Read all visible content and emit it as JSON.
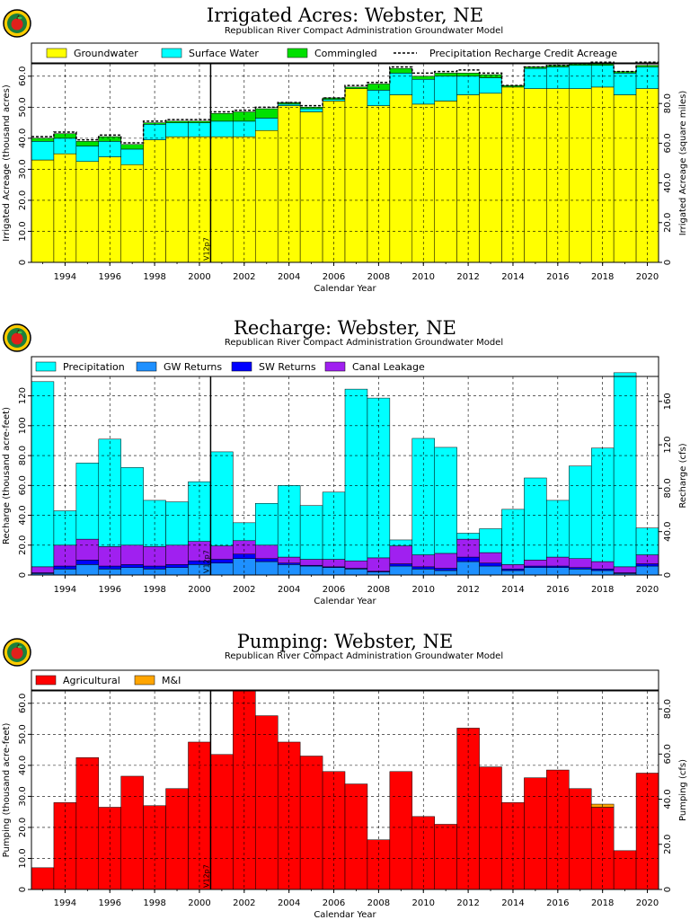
{
  "chart_data": [
    {
      "type": "bar",
      "stacked": true,
      "title": "Irrigated Acres: Webster, NE",
      "subtitle": "Republican River Compact Administration Groundwater Model",
      "xlabel": "Calendar Year",
      "ylabel": "Irrigated Acreage (thousand acres)",
      "ylabel_right": "Irrigated Acreage (square miles)",
      "ylim": [
        0,
        64
      ],
      "yticks": [
        "0",
        "10.0",
        "20.0",
        "30.0",
        "40.0",
        "50.0",
        "60.0"
      ],
      "ylim_right": [
        0,
        100
      ],
      "yticks_right": [
        "0",
        "20.0",
        "40.0",
        "60.0",
        "80.0"
      ],
      "xlim": [
        1992.5,
        2020.5
      ],
      "xtick_labels": [
        "1994",
        "1996",
        "1998",
        "2000",
        "2002",
        "2004",
        "2006",
        "2008",
        "2010",
        "2012",
        "2014",
        "2016",
        "2018",
        "2020"
      ],
      "annotation": "V12p7",
      "annotation_x": 2000.5,
      "grid": true,
      "legend_position": "top",
      "categories": [
        1993,
        1994,
        1995,
        1996,
        1997,
        1998,
        1999,
        2000,
        2001,
        2002,
        2003,
        2004,
        2005,
        2006,
        2007,
        2008,
        2009,
        2010,
        2011,
        2012,
        2013,
        2014,
        2015,
        2016,
        2017,
        2018,
        2019,
        2020
      ],
      "series": [
        {
          "name": "Groundwater",
          "color": "#ffff00",
          "values": [
            33,
            35,
            32.5,
            34,
            31.5,
            39.5,
            40.5,
            40.5,
            40.5,
            40.5,
            42.5,
            50.5,
            48.5,
            52,
            56,
            50.5,
            54,
            51,
            52,
            54,
            54.5,
            56.5,
            56,
            56,
            56,
            56.5,
            54,
            56
          ]
        },
        {
          "name": "Surface Water",
          "color": "#00ffff",
          "values": [
            6,
            5,
            5,
            5,
            5,
            5,
            4.5,
            4.5,
            5,
            5,
            4,
            0.5,
            1,
            0.5,
            0,
            5,
            7,
            8,
            8,
            6,
            5,
            0,
            6.5,
            7,
            7.5,
            7,
            7,
            7
          ]
        },
        {
          "name": "Commingled",
          "color": "#00e000",
          "values": [
            1,
            1.5,
            1.5,
            1.5,
            1.5,
            0.5,
            0.5,
            0.5,
            2.5,
            3,
            3,
            0.5,
            0.5,
            0.5,
            0.5,
            2,
            1.5,
            1,
            1,
            1,
            1,
            0.5,
            0.5,
            0.5,
            0.5,
            0.5,
            0.5,
            0.5
          ]
        }
      ],
      "line_series": {
        "name": "Precipitation Recharge Credit Acreage",
        "style": "dashed",
        "values": [
          40.5,
          42,
          39.5,
          41,
          38.5,
          45.5,
          46,
          46,
          48.5,
          49,
          50,
          51.5,
          50.5,
          53,
          57,
          58,
          63,
          61,
          61.5,
          62,
          61,
          57,
          63,
          63.5,
          64,
          64.5,
          61.5,
          64.5
        ]
      }
    },
    {
      "type": "bar",
      "stacked": true,
      "title": "Recharge: Webster, NE",
      "subtitle": "Republican River Compact Administration Groundwater Model",
      "xlabel": "Calendar Year",
      "ylabel": "Recharge (thousand acre-feet)",
      "ylabel_right": "Recharge (cfs)",
      "ylim": [
        0,
        133
      ],
      "yticks": [
        "0",
        "20.0",
        "40.0",
        "60.0",
        "80.0",
        "100",
        "120"
      ],
      "ylim_right": [
        0,
        183
      ],
      "yticks_right": [
        "0",
        "40.0",
        "80.0",
        "120",
        "160"
      ],
      "xlim": [
        1992.5,
        2020.5
      ],
      "xtick_labels": [
        "1994",
        "1996",
        "1998",
        "2000",
        "2002",
        "2004",
        "2006",
        "2008",
        "2010",
        "2012",
        "2014",
        "2016",
        "2018",
        "2020"
      ],
      "annotation": "V12p7",
      "annotation_x": 2000.5,
      "grid": true,
      "legend_position": "top",
      "categories": [
        1993,
        1994,
        1995,
        1996,
        1997,
        1998,
        1999,
        2000,
        2001,
        2002,
        2003,
        2004,
        2005,
        2006,
        2007,
        2008,
        2009,
        2010,
        2011,
        2012,
        2013,
        2014,
        2015,
        2016,
        2017,
        2018,
        2019,
        2020
      ],
      "series": [
        {
          "name": "GW Returns",
          "color": "#1e90ff",
          "values": [
            1,
            4,
            7,
            4,
            5,
            4,
            5,
            7,
            8,
            11,
            9,
            7,
            6,
            5,
            4,
            2,
            6,
            4,
            3,
            9,
            6,
            3,
            5,
            5,
            4,
            3,
            1,
            6
          ]
        },
        {
          "name": "SW Returns",
          "color": "#0000ff",
          "values": [
            0.5,
            2,
            3,
            2,
            2,
            2,
            2,
            2.5,
            2.5,
            3,
            2,
            1,
            0.5,
            0.5,
            0.5,
            0.5,
            1.5,
            1.5,
            1.5,
            3,
            2,
            1,
            1,
            1,
            1,
            1,
            0.5,
            1.5
          ]
        },
        {
          "name": "Canal Leakage",
          "color": "#a020f0",
          "values": [
            4,
            14,
            14,
            13,
            13,
            13,
            13,
            13,
            9,
            9,
            9,
            4,
            4,
            5,
            5,
            9,
            12,
            8,
            10,
            12,
            7,
            3,
            4,
            6,
            6,
            5,
            4,
            6
          ]
        },
        {
          "name": "Precipitation",
          "color": "#00ffff",
          "values": [
            124,
            23,
            51,
            72,
            52,
            31,
            29,
            40,
            63,
            12,
            28,
            48,
            36,
            45,
            115,
            107,
            4,
            78,
            71,
            4,
            16,
            37,
            55,
            38,
            62,
            76,
            130,
            18
          ]
        }
      ]
    },
    {
      "type": "bar",
      "stacked": true,
      "title": "Pumping: Webster, NE",
      "subtitle": "Republican River Compact Administration Groundwater Model",
      "xlabel": "Calendar Year",
      "ylabel": "Pumping (thousand acre-feet)",
      "ylabel_right": "Pumping (cfs)",
      "ylim": [
        0,
        64
      ],
      "yticks": [
        "0",
        "10.0",
        "20.0",
        "30.0",
        "40.0",
        "50.0",
        "60.0"
      ],
      "ylim_right": [
        0,
        88
      ],
      "yticks_right": [
        "0",
        "20.0",
        "40.0",
        "60.0",
        "80.0"
      ],
      "xlim": [
        1992.5,
        2020.5
      ],
      "xtick_labels": [
        "1994",
        "1996",
        "1998",
        "2000",
        "2002",
        "2004",
        "2006",
        "2008",
        "2010",
        "2012",
        "2014",
        "2016",
        "2018",
        "2020"
      ],
      "annotation": "V12p7",
      "annotation_x": 2000.5,
      "grid": true,
      "legend_position": "top",
      "categories": [
        1993,
        1994,
        1995,
        1996,
        1997,
        1998,
        1999,
        2000,
        2001,
        2002,
        2003,
        2004,
        2005,
        2006,
        2007,
        2008,
        2009,
        2010,
        2011,
        2012,
        2013,
        2014,
        2015,
        2016,
        2017,
        2018,
        2019,
        2020
      ],
      "series": [
        {
          "name": "Agricultural",
          "color": "#ff0000",
          "values": [
            7,
            28,
            42.5,
            26.5,
            36.5,
            27,
            32.5,
            47.5,
            43.5,
            64,
            56,
            47.5,
            43,
            38,
            34,
            16,
            38,
            23.5,
            21,
            52,
            39.5,
            28,
            36,
            38.5,
            32.5,
            26.5,
            12.5,
            37.5
          ]
        },
        {
          "name": "M&I",
          "color": "#ffa500",
          "values": [
            0,
            0,
            0,
            0,
            0,
            0,
            0,
            0,
            0,
            0,
            0,
            0,
            0,
            0,
            0,
            0,
            0,
            0,
            0,
            0,
            0,
            0,
            0,
            0,
            0,
            1,
            0,
            0
          ]
        }
      ]
    }
  ]
}
